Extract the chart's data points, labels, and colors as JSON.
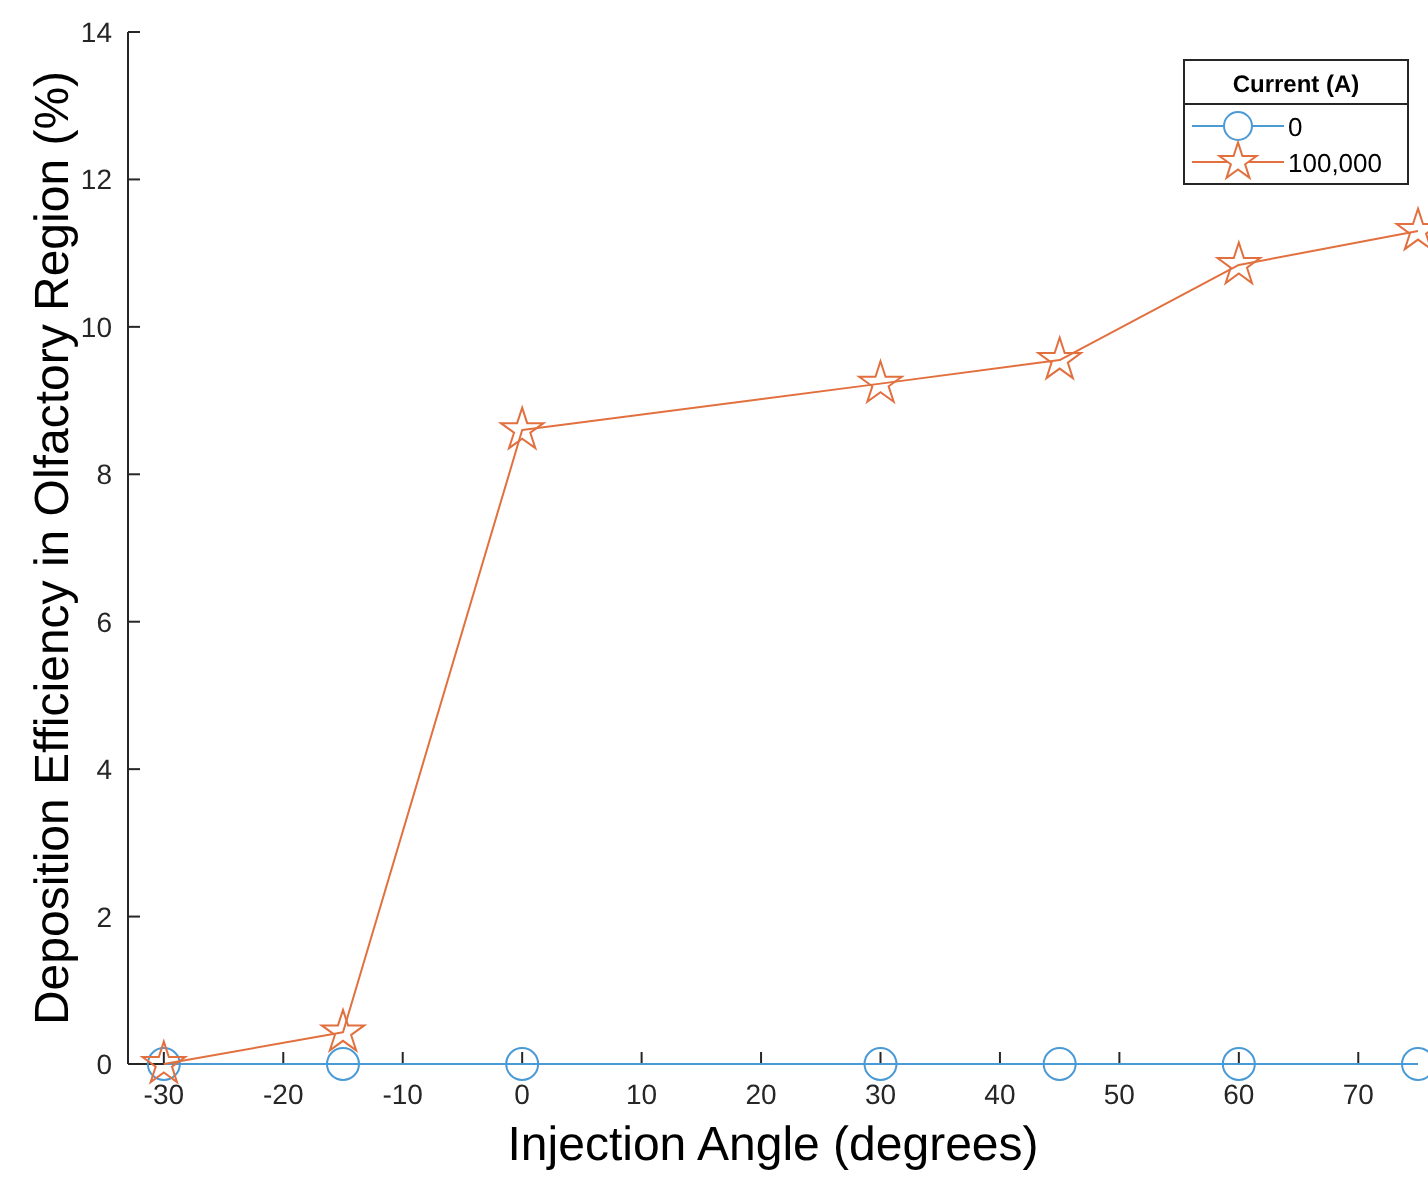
{
  "chart_data": {
    "type": "line",
    "xlabel": "Injection Angle (degrees)",
    "ylabel": "Deposition Efficiency in Olfactory Region (%)",
    "legend_title": "Current (A)",
    "legend": "top right",
    "grid": false,
    "x": [
      -30,
      -15,
      0,
      30,
      45,
      60,
      75
    ],
    "xlim": [
      -33,
      75
    ],
    "xticks": [
      -30,
      -20,
      -10,
      0,
      10,
      20,
      30,
      40,
      50,
      60,
      70
    ],
    "ylim": [
      0,
      14
    ],
    "yticks": [
      0,
      2,
      4,
      6,
      8,
      10,
      12,
      14
    ],
    "series": [
      {
        "name": "0",
        "color": "#4a9ad6",
        "marker": "circle",
        "values": [
          0,
          0,
          0,
          0,
          0,
          0,
          0
        ]
      },
      {
        "name": "100,000",
        "color": "#e2703f",
        "marker": "star",
        "values": [
          0,
          0.43,
          8.6,
          9.23,
          9.55,
          10.84,
          11.3
        ]
      }
    ]
  }
}
